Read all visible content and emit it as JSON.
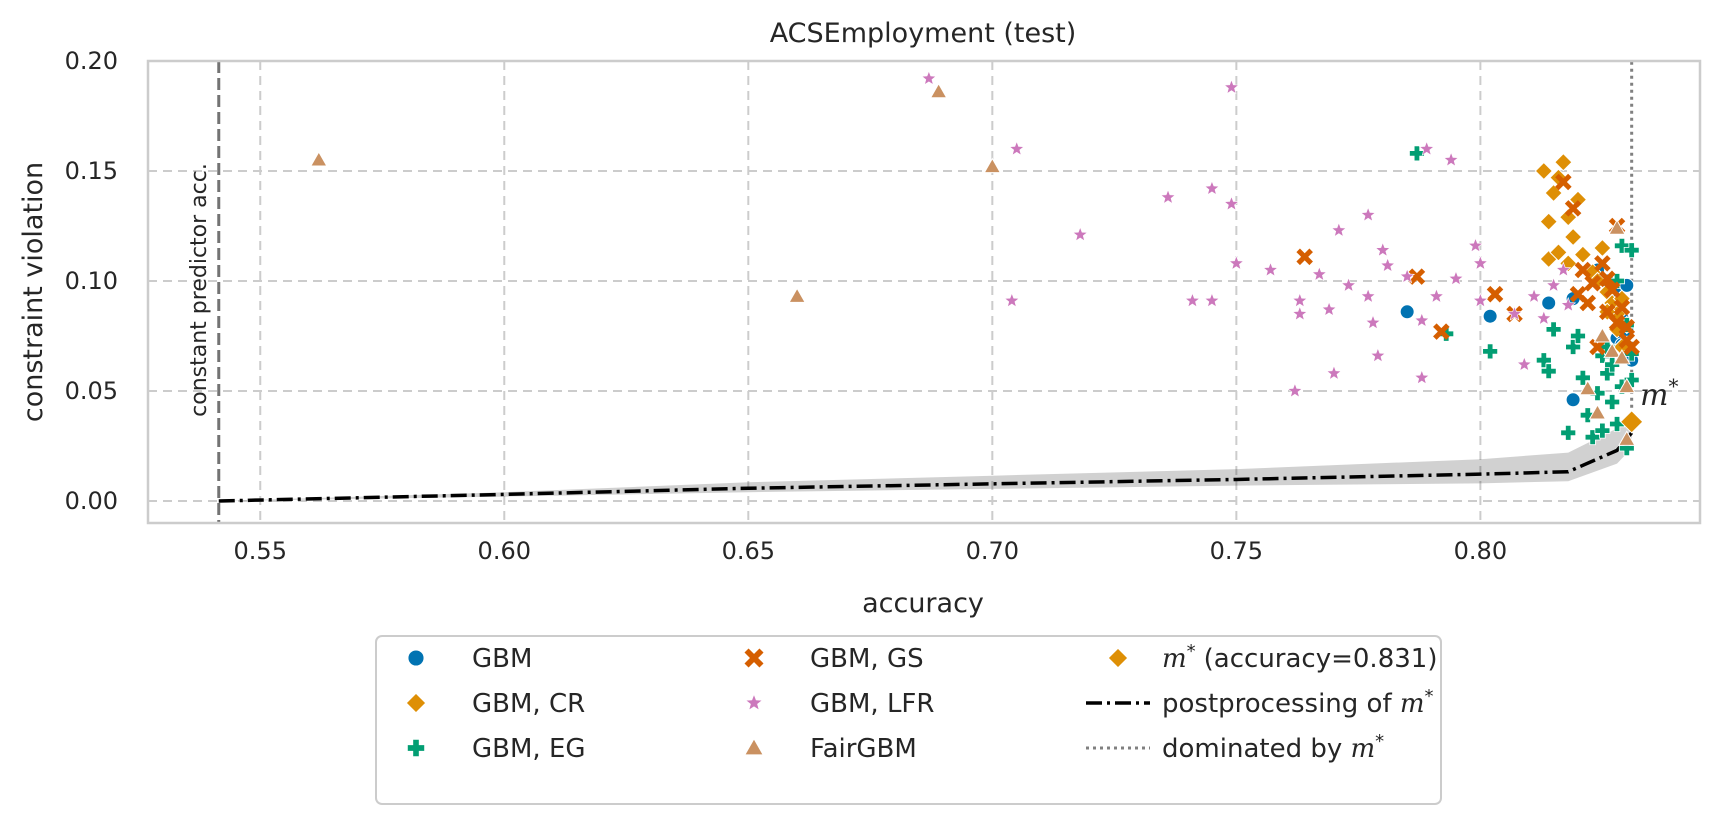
{
  "chart_data": {
    "type": "scatter",
    "title": "ACSEmployment (test)",
    "xlabel": "accuracy",
    "ylabel": "constraint violation",
    "xlim": [
      0.527,
      0.845
    ],
    "ylim": [
      -0.01,
      0.2
    ],
    "x_ticks": [
      0.55,
      0.6,
      0.65,
      0.7,
      0.75,
      0.8
    ],
    "x_tick_labels": [
      "0.55",
      "0.60",
      "0.65",
      "0.70",
      "0.75",
      "0.80"
    ],
    "y_ticks": [
      0.0,
      0.05,
      0.1,
      0.15,
      0.2
    ],
    "y_tick_labels": [
      "0.00",
      "0.05",
      "0.10",
      "0.15",
      "0.20"
    ],
    "grid": true,
    "legend_placement": "below",
    "constant_predictor": {
      "x": 0.5415,
      "label": "constant predictor acc."
    },
    "m_star": {
      "x": 0.831,
      "y": 0.036,
      "label": "m*",
      "legend": "(accuracy=0.831)"
    },
    "series": [
      {
        "name": "GBM",
        "marker": "circle",
        "color": "#0173b2",
        "points": [
          [
            0.785,
            0.086
          ],
          [
            0.802,
            0.084
          ],
          [
            0.814,
            0.09
          ],
          [
            0.819,
            0.092
          ],
          [
            0.819,
            0.046
          ],
          [
            0.824,
            0.105
          ],
          [
            0.826,
            0.1
          ],
          [
            0.828,
            0.095
          ],
          [
            0.827,
            0.088
          ],
          [
            0.829,
            0.083
          ],
          [
            0.83,
            0.078
          ],
          [
            0.828,
            0.074
          ],
          [
            0.829,
            0.071
          ],
          [
            0.83,
            0.068
          ],
          [
            0.831,
            0.064
          ],
          [
            0.83,
            0.098
          ]
        ]
      },
      {
        "name": "GBM, CR",
        "marker": "diamond",
        "color": "#de8f05",
        "points": [
          [
            0.813,
            0.15
          ],
          [
            0.814,
            0.127
          ],
          [
            0.815,
            0.14
          ],
          [
            0.816,
            0.147
          ],
          [
            0.817,
            0.154
          ],
          [
            0.818,
            0.129
          ],
          [
            0.819,
            0.12
          ],
          [
            0.82,
            0.137
          ],
          [
            0.814,
            0.11
          ],
          [
            0.816,
            0.113
          ],
          [
            0.818,
            0.108
          ],
          [
            0.821,
            0.112
          ],
          [
            0.823,
            0.104
          ],
          [
            0.824,
            0.1
          ],
          [
            0.825,
            0.115
          ],
          [
            0.826,
            0.095
          ],
          [
            0.827,
            0.09
          ],
          [
            0.828,
            0.085
          ],
          [
            0.829,
            0.092
          ],
          [
            0.83,
            0.08
          ],
          [
            0.826,
            0.086
          ],
          [
            0.828,
            0.078
          ],
          [
            0.829,
            0.07
          ]
        ]
      },
      {
        "name": "GBM, EG",
        "marker": "plus",
        "color": "#029e73",
        "points": [
          [
            0.787,
            0.158
          ],
          [
            0.793,
            0.076
          ],
          [
            0.802,
            0.068
          ],
          [
            0.813,
            0.064
          ],
          [
            0.814,
            0.059
          ],
          [
            0.815,
            0.078
          ],
          [
            0.818,
            0.031
          ],
          [
            0.819,
            0.07
          ],
          [
            0.82,
            0.075
          ],
          [
            0.821,
            0.056
          ],
          [
            0.822,
            0.039
          ],
          [
            0.823,
            0.029
          ],
          [
            0.824,
            0.049
          ],
          [
            0.825,
            0.066
          ],
          [
            0.825,
            0.032
          ],
          [
            0.826,
            0.058
          ],
          [
            0.826,
            0.07
          ],
          [
            0.827,
            0.062
          ],
          [
            0.827,
            0.045
          ],
          [
            0.828,
            0.035
          ],
          [
            0.828,
            0.1
          ],
          [
            0.829,
            0.116
          ],
          [
            0.829,
            0.052
          ],
          [
            0.83,
            0.024
          ],
          [
            0.83,
            0.08
          ],
          [
            0.831,
            0.114
          ],
          [
            0.831,
            0.067
          ],
          [
            0.831,
            0.055
          ]
        ]
      },
      {
        "name": "GBM, GS",
        "marker": "x",
        "color": "#d55e00",
        "points": [
          [
            0.764,
            0.111
          ],
          [
            0.787,
            0.102
          ],
          [
            0.792,
            0.077
          ],
          [
            0.803,
            0.094
          ],
          [
            0.807,
            0.085
          ],
          [
            0.817,
            0.145
          ],
          [
            0.819,
            0.133
          ],
          [
            0.82,
            0.094
          ],
          [
            0.821,
            0.105
          ],
          [
            0.822,
            0.09
          ],
          [
            0.823,
            0.099
          ],
          [
            0.824,
            0.07
          ],
          [
            0.825,
            0.108
          ],
          [
            0.826,
            0.101
          ],
          [
            0.826,
            0.086
          ],
          [
            0.827,
            0.096
          ],
          [
            0.828,
            0.125
          ],
          [
            0.828,
            0.081
          ],
          [
            0.829,
            0.088
          ],
          [
            0.83,
            0.079
          ],
          [
            0.83,
            0.073
          ],
          [
            0.831,
            0.07
          ]
        ]
      },
      {
        "name": "GBM, LFR",
        "marker": "star",
        "color": "#cc78bc",
        "points": [
          [
            0.687,
            0.192
          ],
          [
            0.705,
            0.16
          ],
          [
            0.704,
            0.091
          ],
          [
            0.718,
            0.121
          ],
          [
            0.736,
            0.138
          ],
          [
            0.741,
            0.091
          ],
          [
            0.745,
            0.142
          ],
          [
            0.745,
            0.091
          ],
          [
            0.749,
            0.135
          ],
          [
            0.75,
            0.108
          ],
          [
            0.749,
            0.188
          ],
          [
            0.757,
            0.105
          ],
          [
            0.762,
            0.05
          ],
          [
            0.763,
            0.085
          ],
          [
            0.763,
            0.091
          ],
          [
            0.767,
            0.103
          ],
          [
            0.769,
            0.087
          ],
          [
            0.77,
            0.058
          ],
          [
            0.771,
            0.123
          ],
          [
            0.773,
            0.098
          ],
          [
            0.777,
            0.13
          ],
          [
            0.777,
            0.093
          ],
          [
            0.778,
            0.081
          ],
          [
            0.779,
            0.066
          ],
          [
            0.78,
            0.114
          ],
          [
            0.781,
            0.107
          ],
          [
            0.785,
            0.102
          ],
          [
            0.788,
            0.056
          ],
          [
            0.788,
            0.082
          ],
          [
            0.789,
            0.16
          ],
          [
            0.791,
            0.093
          ],
          [
            0.794,
            0.155
          ],
          [
            0.795,
            0.101
          ],
          [
            0.799,
            0.116
          ],
          [
            0.8,
            0.108
          ],
          [
            0.8,
            0.091
          ],
          [
            0.807,
            0.085
          ],
          [
            0.809,
            0.062
          ],
          [
            0.811,
            0.093
          ],
          [
            0.813,
            0.083
          ],
          [
            0.815,
            0.098
          ],
          [
            0.817,
            0.105
          ],
          [
            0.818,
            0.089
          ]
        ]
      },
      {
        "name": "FairGBM",
        "marker": "triangle",
        "color": "#ca9161",
        "points": [
          [
            0.562,
            0.155
          ],
          [
            0.66,
            0.093
          ],
          [
            0.689,
            0.186
          ],
          [
            0.7,
            0.152
          ],
          [
            0.822,
            0.051
          ],
          [
            0.824,
            0.04
          ],
          [
            0.825,
            0.075
          ],
          [
            0.827,
            0.068
          ],
          [
            0.828,
            0.124
          ],
          [
            0.829,
            0.065
          ],
          [
            0.83,
            0.052
          ],
          [
            0.83,
            0.028
          ]
        ]
      },
      {
        "name": "postprocessing of m*",
        "marker": "dashdot-line",
        "color": "#000000",
        "points": [
          [
            0.5415,
            0.0
          ],
          [
            0.6,
            0.003
          ],
          [
            0.65,
            0.0058
          ],
          [
            0.7,
            0.0078
          ],
          [
            0.75,
            0.0098
          ],
          [
            0.8,
            0.0122
          ],
          [
            0.818,
            0.0133
          ],
          [
            0.828,
            0.023
          ],
          [
            0.831,
            0.031
          ]
        ],
        "band": [
          [
            0.5415,
            0.0,
            0.0
          ],
          [
            0.6,
            0.002,
            0.004
          ],
          [
            0.65,
            0.004,
            0.0085
          ],
          [
            0.7,
            0.0055,
            0.0115
          ],
          [
            0.75,
            0.007,
            0.0145
          ],
          [
            0.8,
            0.008,
            0.019
          ],
          [
            0.818,
            0.009,
            0.022
          ],
          [
            0.828,
            0.017,
            0.033
          ],
          [
            0.831,
            0.024,
            0.037
          ]
        ]
      },
      {
        "name": "dominated by m*",
        "marker": "dotted-line",
        "color": "#808080",
        "points": [
          [
            0.831,
            0.036
          ],
          [
            0.831,
            0.2
          ]
        ]
      }
    ],
    "legend": [
      {
        "label": "GBM",
        "marker": "circle",
        "color": "#0173b2"
      },
      {
        "label": "GBM, CR",
        "marker": "diamond",
        "color": "#de8f05"
      },
      {
        "label": "GBM, EG",
        "marker": "plus",
        "color": "#029e73"
      },
      {
        "label": "GBM, GS",
        "marker": "x",
        "color": "#d55e00"
      },
      {
        "label": "GBM, LFR",
        "marker": "star",
        "color": "#cc78bc"
      },
      {
        "label": "FairGBM",
        "marker": "triangle",
        "color": "#ca9161"
      },
      {
        "label": "(accuracy=0.831)",
        "marker": "diamond",
        "color": "#de8f05",
        "italic_prefix": "m",
        "sup": "*"
      },
      {
        "label": "postprocessing of ",
        "marker": "dashdot-line",
        "color": "#000000",
        "italic_suffix": "m",
        "sup": "*"
      },
      {
        "label": "dominated by ",
        "marker": "dotted-line",
        "color": "#808080",
        "italic_suffix": "m",
        "sup": "*"
      }
    ]
  }
}
